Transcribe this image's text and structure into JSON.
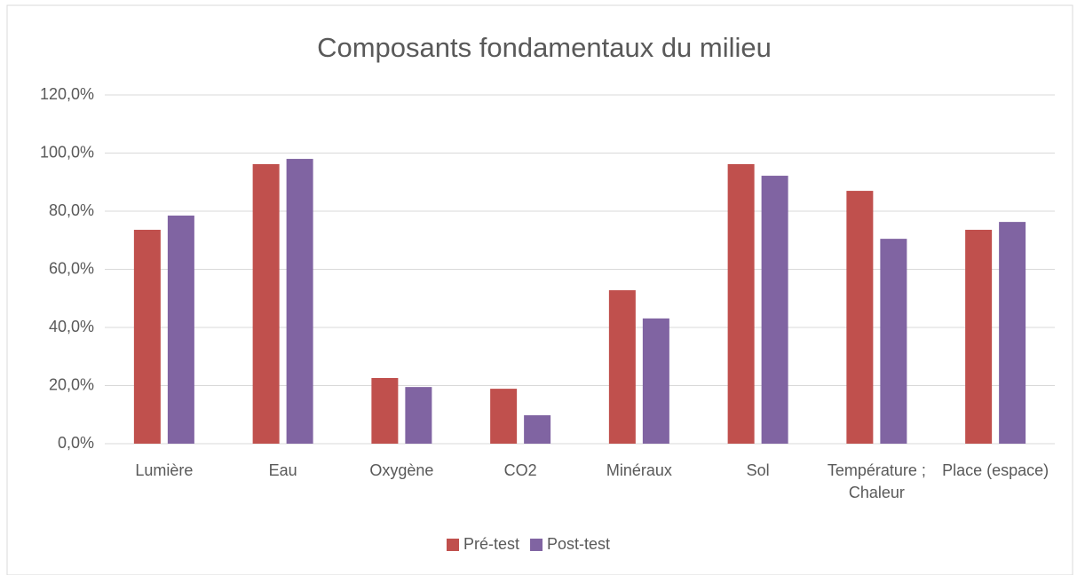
{
  "chart_data": {
    "type": "bar",
    "title": "Composants fondamentaux du milieu",
    "categories": [
      "Lumière",
      "Eau",
      "Oxygène",
      "CO2",
      "Minéraux",
      "Sol",
      "Température ; Chaleur",
      "Place (espace)"
    ],
    "series": [
      {
        "name": "Pré-test",
        "color": "#c0504d",
        "values": [
          73.6,
          96.2,
          22.6,
          18.9,
          52.8,
          96.2,
          87.0,
          73.6
        ]
      },
      {
        "name": "Post-test",
        "color": "#8064a2",
        "values": [
          78.5,
          98.0,
          19.5,
          9.8,
          43.1,
          92.2,
          70.5,
          76.3
        ]
      }
    ],
    "ylim": [
      0,
      120
    ],
    "yticks": [
      {
        "value": 0,
        "label": "0,0%"
      },
      {
        "value": 20,
        "label": "20,0%"
      },
      {
        "value": 40,
        "label": "40,0%"
      },
      {
        "value": 60,
        "label": "60,0%"
      },
      {
        "value": 80,
        "label": "80,0%"
      },
      {
        "value": 100,
        "label": "100,0%"
      },
      {
        "value": 120,
        "label": "120,0%"
      }
    ],
    "grid": true,
    "legend": "bottom"
  }
}
